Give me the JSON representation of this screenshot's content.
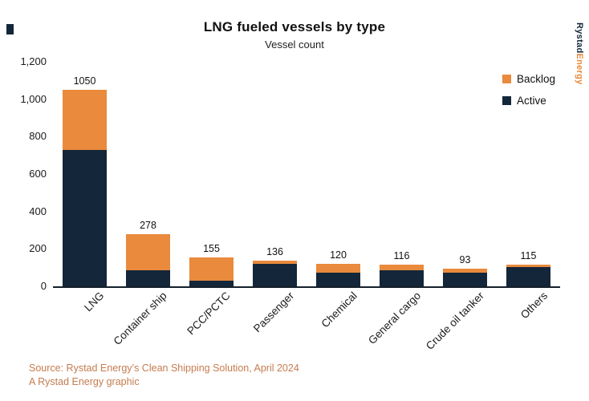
{
  "title": "LNG fueled vessels by type",
  "subtitle": "Vessel count",
  "brand": {
    "part1": "Rystad",
    "part2": "Energy"
  },
  "legend": [
    {
      "label": "Backlog",
      "color": "#E98A3C"
    },
    {
      "label": "Active",
      "color": "#142639"
    }
  ],
  "source": {
    "line1": "Source: Rystad Energy’s Clean Shipping Solution, April 2024",
    "line2": "A Rystad Energy graphic"
  },
  "colors": {
    "backlog_orange": "#E98A3C",
    "active_navy": "#142639",
    "axis_line": "#15202b",
    "source_text": "#C57C50",
    "background": "#ffffff"
  },
  "chart_data": {
    "type": "bar",
    "stacked": true,
    "title": "LNG fueled vessels by type",
    "subtitle": "Vessel count",
    "categories": [
      "LNG",
      "Container ship",
      "PCC/PCTC",
      "Passenger",
      "Chemical",
      "General cargo",
      "Crude oil tanker",
      "Others"
    ],
    "series": [
      {
        "name": "Active",
        "color": "#142639",
        "values": [
          730,
          85,
          30,
          120,
          75,
          85,
          75,
          105
        ]
      },
      {
        "name": "Backlog",
        "color": "#E98A3C",
        "values": [
          320,
          193,
          125,
          16,
          45,
          31,
          18,
          10
        ]
      }
    ],
    "totals": [
      1050,
      278,
      155,
      136,
      120,
      116,
      93,
      115
    ],
    "ylim": [
      0,
      1200
    ],
    "yticks": [
      0,
      200,
      400,
      600,
      800,
      1000,
      1200
    ],
    "ytick_labels": [
      "0",
      "200",
      "400",
      "600",
      "800",
      "1,000",
      "1,200"
    ],
    "xlabel": "",
    "ylabel": "Vessel count",
    "grid": false,
    "legend_position": "top-right"
  }
}
